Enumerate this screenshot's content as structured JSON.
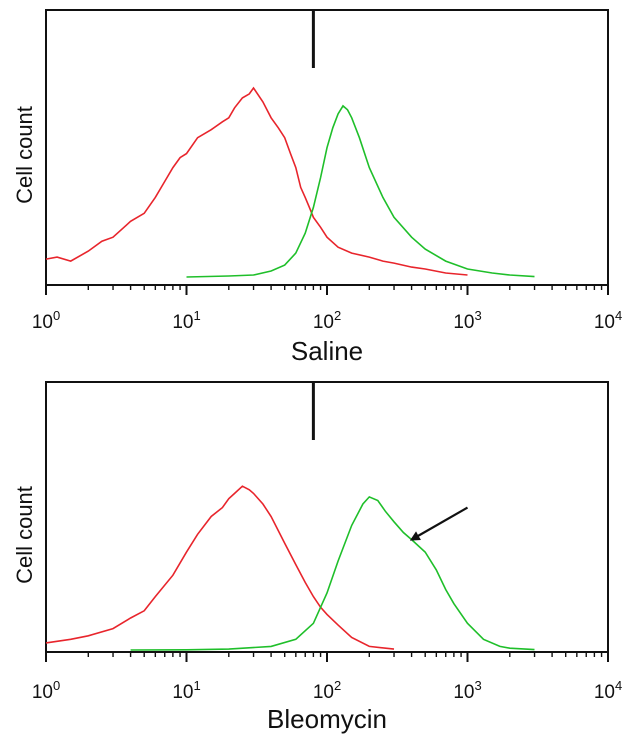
{
  "chart_data": [
    {
      "type": "line",
      "title": "",
      "xlabel": "Saline",
      "ylabel": "Cell count",
      "x_scale": "log",
      "xlim": [
        1,
        10000
      ],
      "ylim": [
        0,
        1
      ],
      "grid": false,
      "tick_labels": [
        {
          "base": "10",
          "exp": "0"
        },
        {
          "base": "10",
          "exp": "1"
        },
        {
          "base": "10",
          "exp": "2"
        },
        {
          "base": "10",
          "exp": "3"
        },
        {
          "base": "10",
          "exp": "4"
        }
      ],
      "gate_x": 80,
      "colors": {
        "series_1": "#e8252c",
        "series_2": "#1fbf2a"
      },
      "series": [
        {
          "x": [
            1,
            1.2,
            1.5,
            2,
            2.5,
            3,
            4,
            5,
            6,
            7,
            8,
            9,
            10,
            12,
            15,
            18,
            20,
            22,
            25,
            28,
            30,
            35,
            40,
            45,
            50,
            55,
            60,
            65,
            70,
            75,
            80,
            90,
            100,
            120,
            150,
            200,
            250,
            300,
            400,
            500,
            700,
            1000
          ],
          "y": [
            0.09,
            0.1,
            0.08,
            0.13,
            0.18,
            0.2,
            0.28,
            0.32,
            0.4,
            0.48,
            0.55,
            0.6,
            0.62,
            0.7,
            0.74,
            0.78,
            0.8,
            0.85,
            0.9,
            0.92,
            0.95,
            0.88,
            0.8,
            0.75,
            0.7,
            0.62,
            0.55,
            0.45,
            0.4,
            0.35,
            0.3,
            0.25,
            0.2,
            0.15,
            0.12,
            0.1,
            0.08,
            0.07,
            0.05,
            0.04,
            0.02,
            0.01
          ]
        },
        {
          "x": [
            10,
            20,
            30,
            40,
            50,
            60,
            70,
            80,
            90,
            100,
            110,
            120,
            130,
            140,
            150,
            170,
            200,
            250,
            300,
            400,
            500,
            700,
            1000,
            1500,
            2000,
            3000
          ],
          "y": [
            0,
            0.005,
            0.01,
            0.03,
            0.06,
            0.12,
            0.22,
            0.35,
            0.5,
            0.65,
            0.75,
            0.82,
            0.86,
            0.84,
            0.8,
            0.7,
            0.55,
            0.4,
            0.3,
            0.2,
            0.14,
            0.08,
            0.04,
            0.02,
            0.01,
            0.002
          ]
        }
      ]
    },
    {
      "type": "line",
      "title": "",
      "xlabel": "Bleomycin",
      "ylabel": "Cell count",
      "x_scale": "log",
      "xlim": [
        1,
        10000
      ],
      "ylim": [
        0,
        1
      ],
      "grid": false,
      "tick_labels": [
        {
          "base": "10",
          "exp": "0"
        },
        {
          "base": "10",
          "exp": "1"
        },
        {
          "base": "10",
          "exp": "2"
        },
        {
          "base": "10",
          "exp": "3"
        },
        {
          "base": "10",
          "exp": "4"
        }
      ],
      "gate_x": 80,
      "arrow": {
        "from_x": 1000,
        "from_y": 0.8,
        "to_x": 400,
        "to_y": 0.62
      },
      "colors": {
        "series_1": "#e8252c",
        "series_2": "#1fbf2a"
      },
      "series": [
        {
          "x": [
            1,
            1.5,
            2,
            3,
            4,
            5,
            6,
            8,
            10,
            12,
            15,
            18,
            20,
            22,
            25,
            28,
            30,
            35,
            40,
            50,
            60,
            70,
            80,
            90,
            100,
            120,
            150,
            200,
            300
          ],
          "y": [
            0.04,
            0.06,
            0.08,
            0.12,
            0.18,
            0.22,
            0.3,
            0.42,
            0.55,
            0.65,
            0.75,
            0.8,
            0.85,
            0.88,
            0.92,
            0.9,
            0.88,
            0.82,
            0.75,
            0.6,
            0.48,
            0.38,
            0.3,
            0.24,
            0.2,
            0.14,
            0.07,
            0.02,
            0.005
          ]
        },
        {
          "x": [
            4,
            10,
            20,
            40,
            60,
            80,
            100,
            120,
            150,
            180,
            200,
            230,
            260,
            300,
            350,
            400,
            500,
            600,
            700,
            800,
            1000,
            1300,
            1700,
            2000,
            3000
          ],
          "y": [
            0,
            0.001,
            0.005,
            0.02,
            0.06,
            0.15,
            0.32,
            0.5,
            0.7,
            0.82,
            0.86,
            0.84,
            0.78,
            0.72,
            0.66,
            0.62,
            0.55,
            0.45,
            0.34,
            0.26,
            0.15,
            0.06,
            0.02,
            0.01,
            0.002
          ]
        }
      ]
    }
  ]
}
